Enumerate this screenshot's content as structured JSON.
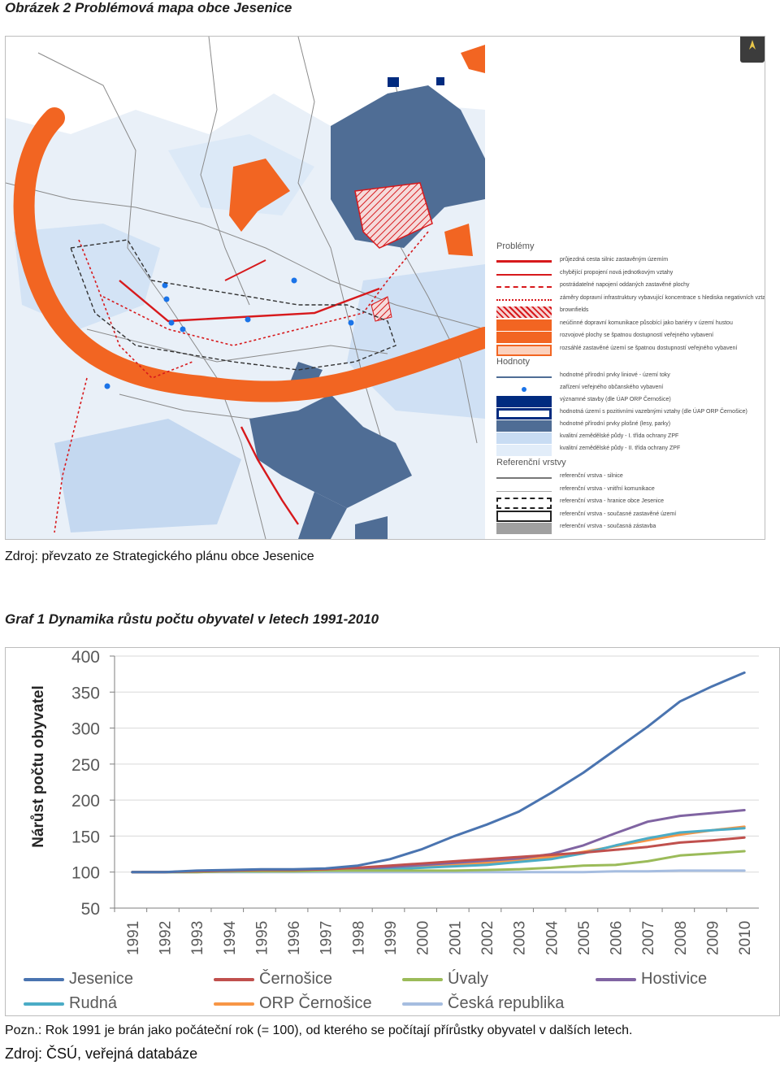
{
  "figure1": {
    "caption": "Obrázek 2 Problémová mapa obce Jesenice",
    "source": "Zdroj: převzato ze Strategického plánu obce Jesenice",
    "legend": {
      "heading_problems": "Problémy",
      "heading_values": "Hodnoty",
      "heading_reference": "Referenční vrstvy",
      "problems": [
        {
          "text": "průjezdná cesta silnic zastavěným územím",
          "style": "line-red"
        },
        {
          "text": "chybějící propojení nová jednotkovým vztahy",
          "style": "line-red-arrows"
        },
        {
          "text": "postrádatelné napojení oddaných zastavěné plochy",
          "style": "line-red-dash"
        },
        {
          "text": "záměry dopravní infrastruktury vybavující koncentrace s hlediska negativních vztahů",
          "style": "line-red-dot"
        },
        {
          "text": "brownfields",
          "style": "fill-red-hatch"
        },
        {
          "text": "neúčinné dopravní komunikace působící jako bariéry v území hustou",
          "style": "fill-orange"
        },
        {
          "text": "rozvojové plochy se špatnou dostupností veřejného vybavení",
          "style": "fill-orange"
        },
        {
          "text": "rozsáhlé zastavěné území se špatnou dostupností veřejného vybavení",
          "style": "fill-orange-outline"
        }
      ],
      "values": [
        {
          "text": "hodnotné přírodní prvky liniové - území toky",
          "style": "line-blue"
        },
        {
          "text": "zařízení veřejného občanského vybavení",
          "style": "dot-blue"
        },
        {
          "text": "významné stavby (dle ÚAP ORP Černošice)",
          "style": "fill-navy"
        },
        {
          "text": "hodnotná území s pozitivními vazebnými vztahy (dle ÚAP ORP Černošice)",
          "style": "fill-navy-outline"
        },
        {
          "text": "hodnotné přírodní prvky plošné (lesy, parky)",
          "style": "fill-steel"
        },
        {
          "text": "kvalitní zemědělské půdy - I. třída ochrany ZPF",
          "style": "fill-lightblue"
        },
        {
          "text": "kvalitní zemědělské půdy - II. třída ochrany ZPF",
          "style": "fill-paleblue"
        }
      ],
      "reference": [
        {
          "text": "referenční vrstva - silnice",
          "style": "line-grey"
        },
        {
          "text": "referenční vrstva - vnitřní komunikace",
          "style": "line-lightgrey"
        },
        {
          "text": "referenční vrstva - hranice obce Jesenice",
          "style": "box-dash"
        },
        {
          "text": "referenční vrstva - současné zastavěné území",
          "style": "box-outline"
        },
        {
          "text": "referenční vrstva - současná zástavba",
          "style": "fill-grey"
        }
      ]
    },
    "colors": {
      "orange": "#f26522",
      "red": "#d7191c",
      "navy": "#002b7f",
      "steel": "#4f6d95",
      "light_blue": "#c8dcf3",
      "pale_blue": "#e2edf9",
      "grey": "#a0a0a0"
    }
  },
  "figure2": {
    "caption": "Graf 1 Dynamika růstu počtu obyvatel v letech 1991-2010",
    "note": "Pozn.: Rok 1991 je brán jako počáteční rok (= 100), od kterého se počítají přírůstky obyvatel v dalších letech.",
    "source": "Zdroj: ČSÚ, veřejná databáze"
  },
  "chart_data": {
    "type": "line",
    "ylabel": "Nárůst počtu obyvatel",
    "xlabel": "",
    "ylim": [
      50,
      400
    ],
    "yticks": [
      "400",
      "350",
      "300",
      "250",
      "200",
      "150",
      "100",
      "50"
    ],
    "x": [
      "1991",
      "1992",
      "1993",
      "1994",
      "1995",
      "1996",
      "1997",
      "1998",
      "1999",
      "2000",
      "2001",
      "2002",
      "2003",
      "2004",
      "2005",
      "2006",
      "2007",
      "2008",
      "2009",
      "2010"
    ],
    "grid": true,
    "legend_position": "bottom",
    "series": [
      {
        "name": "Jesenice",
        "color": "#4a74b0",
        "values": [
          100,
          100,
          102,
          103,
          104,
          104,
          105,
          109,
          118,
          132,
          150,
          166,
          184,
          210,
          238,
          270,
          302,
          337,
          358,
          377
        ]
      },
      {
        "name": "Černošice",
        "color": "#c0504d",
        "values": [
          100,
          100,
          101,
          102,
          103,
          103,
          104,
          106,
          109,
          112,
          115,
          118,
          121,
          124,
          127,
          131,
          135,
          141,
          144,
          148
        ]
      },
      {
        "name": "Úvaly",
        "color": "#9bbb59",
        "values": [
          100,
          100,
          100,
          101,
          101,
          101,
          102,
          102,
          102,
          102,
          102,
          103,
          104,
          106,
          109,
          110,
          115,
          123,
          126,
          129
        ]
      },
      {
        "name": "Hostivice",
        "color": "#8064a2",
        "values": [
          100,
          100,
          101,
          101,
          102,
          103,
          103,
          105,
          107,
          110,
          113,
          116,
          119,
          125,
          137,
          154,
          170,
          178,
          182,
          186
        ]
      },
      {
        "name": "Rudná",
        "color": "#4bacc6",
        "values": [
          100,
          100,
          100,
          101,
          101,
          102,
          102,
          103,
          104,
          106,
          108,
          110,
          114,
          118,
          126,
          137,
          147,
          155,
          158,
          161
        ]
      },
      {
        "name": "ORP Černošice",
        "color": "#f79646",
        "values": [
          100,
          100,
          101,
          101,
          102,
          102,
          103,
          104,
          106,
          108,
          110,
          113,
          117,
          121,
          128,
          136,
          144,
          152,
          158,
          163
        ]
      },
      {
        "name": "Česká republika",
        "color": "#a6bde0",
        "values": [
          100,
          100,
          100,
          100,
          100,
          100,
          100,
          100,
          100,
          100,
          100,
          100,
          100,
          100,
          100,
          101,
          101,
          102,
          102,
          102
        ]
      }
    ]
  }
}
